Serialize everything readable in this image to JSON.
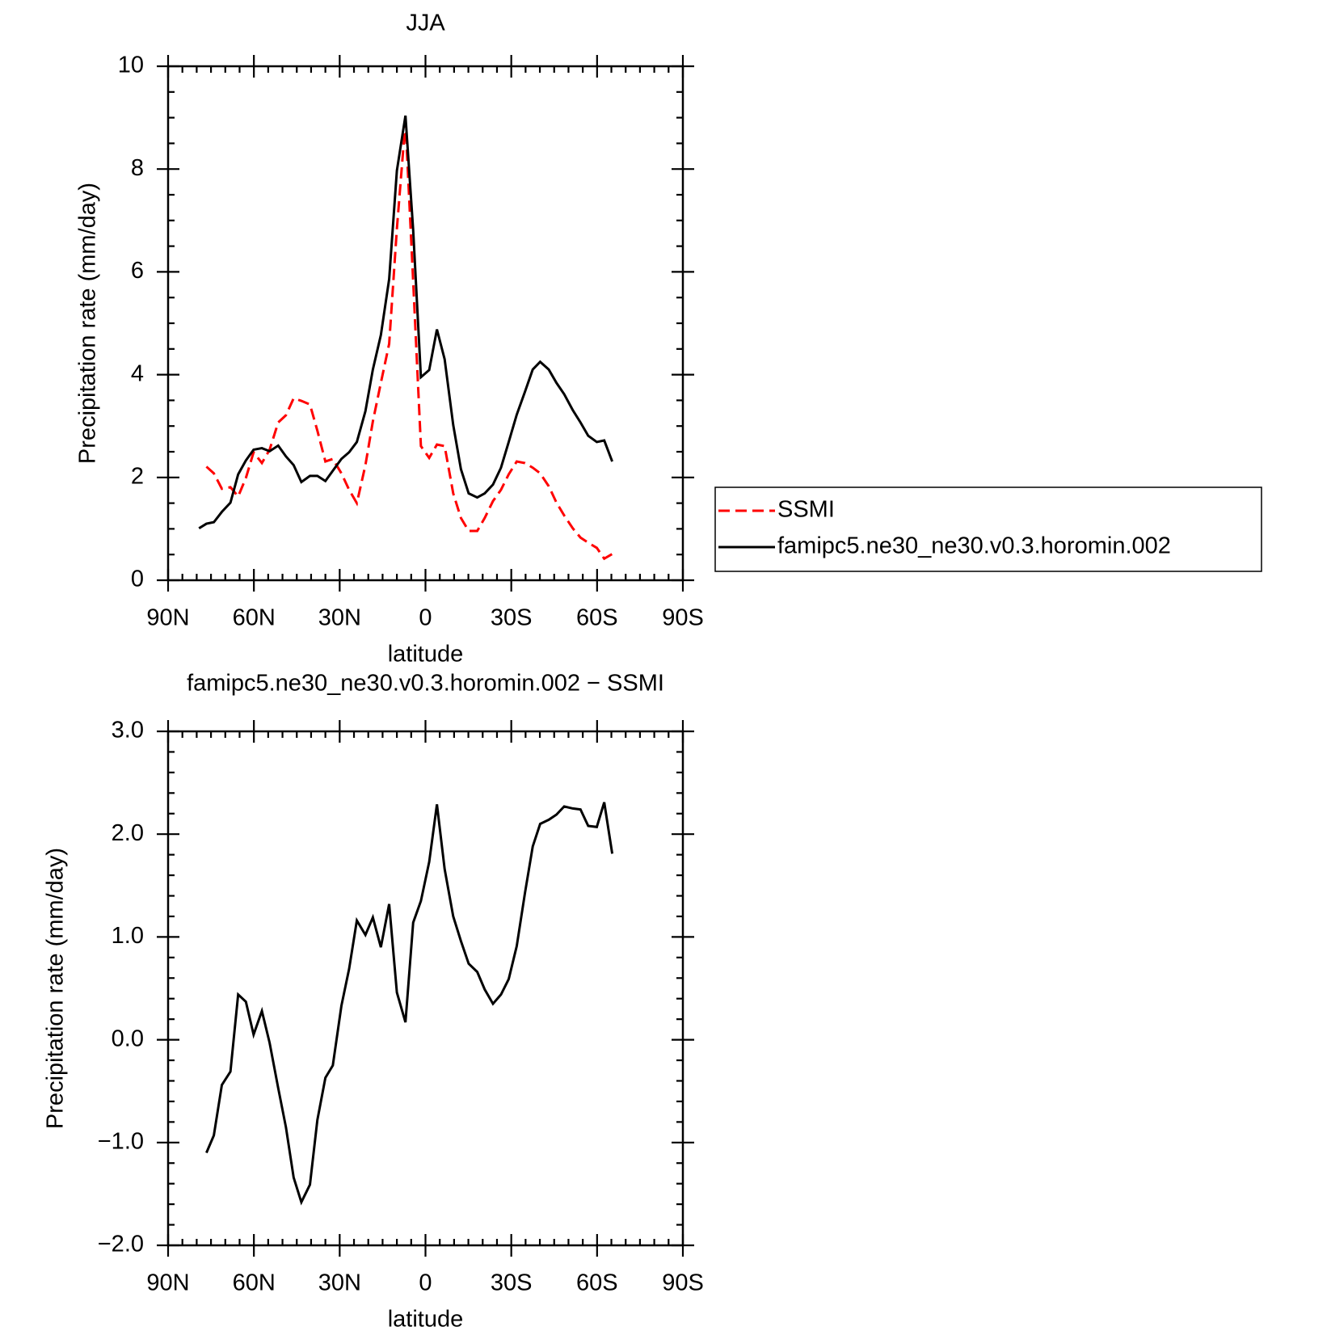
{
  "chart_data": [
    {
      "type": "line",
      "title": "JJA",
      "xlabel": "latitude",
      "ylabel": "Precipitation rate (mm/day)",
      "xlim": [
        90,
        -90
      ],
      "xticks": [
        {
          "value": 90,
          "label": "90N"
        },
        {
          "value": 60,
          "label": "60N"
        },
        {
          "value": 30,
          "label": "30N"
        },
        0,
        {
          "value": -30,
          "label": "30S"
        },
        {
          "value": -60,
          "label": "60S"
        },
        {
          "value": -90,
          "label": "90S"
        }
      ],
      "ylim": [
        0,
        10
      ],
      "yticks": [
        0,
        2,
        4,
        6,
        8,
        10
      ],
      "legend": "right",
      "x": [
        79.2,
        76.6,
        74.0,
        71.2,
        68.2,
        65.5,
        62.8,
        60.1,
        57.2,
        54.5,
        51.5,
        48.8,
        46.1,
        43.4,
        40.4,
        37.8,
        35.0,
        32.4,
        29.4,
        26.7,
        24.0,
        21.0,
        18.4,
        15.6,
        12.7,
        10.0,
        7.0,
        4.3,
        1.6,
        -1.3,
        -4.0,
        -6.7,
        -9.7,
        -12.4,
        -15.1,
        -18.1,
        -20.7,
        -23.6,
        -26.4,
        -29.1,
        -31.9,
        -34.8,
        -37.5,
        -40.1,
        -43.1,
        -45.8,
        -48.5,
        -51.5,
        -54.2,
        -56.9,
        -59.9,
        -62.5,
        -65.3
      ],
      "series": [
        {
          "name": "SSMI",
          "color": "#ff0000",
          "line_style": "dashed",
          "values": [
            null,
            2.21,
            2.08,
            1.78,
            1.81,
            1.63,
            1.99,
            2.49,
            2.28,
            2.54,
            3.07,
            3.21,
            3.54,
            3.49,
            3.42,
            2.91,
            2.31,
            2.36,
            2.08,
            1.76,
            1.5,
            2.24,
            3.09,
            3.84,
            4.6,
            6.84,
            8.92,
            5.81,
            2.61,
            2.38,
            2.64,
            2.61,
            1.69,
            1.21,
            0.96,
            0.96,
            1.21,
            1.54,
            1.76,
            2.06,
            2.31,
            2.28,
            2.19,
            2.08,
            1.83,
            1.51,
            1.26,
            1.01,
            0.83,
            0.73,
            0.63,
            0.42,
            0.51
          ]
        },
        {
          "name": "famipc5.ne30_ne30.v0.3.horomin.002",
          "color": "#000000",
          "line_style": "solid",
          "values": [
            1.01,
            1.1,
            1.13,
            1.33,
            1.51,
            2.06,
            2.33,
            2.54,
            2.57,
            2.51,
            2.62,
            2.41,
            2.24,
            1.91,
            2.03,
            2.03,
            1.93,
            2.13,
            2.36,
            2.49,
            2.69,
            3.29,
            4.1,
            4.77,
            5.86,
            7.97,
            9.04,
            6.81,
            3.95,
            4.09,
            4.88,
            4.3,
            3.02,
            2.16,
            1.69,
            1.61,
            1.69,
            1.86,
            2.19,
            2.69,
            3.22,
            3.67,
            4.1,
            4.25,
            4.1,
            3.84,
            3.62,
            3.31,
            3.07,
            2.81,
            2.69,
            2.72,
            2.31
          ]
        }
      ]
    },
    {
      "type": "line",
      "title": "famipc5.ne30_ne30.v0.3.horomin.002 − SSMI",
      "xlabel": "latitude",
      "ylabel": "Precipitation rate (mm/day)",
      "xlim": [
        90,
        -90
      ],
      "xticks": [
        {
          "value": 90,
          "label": "90N"
        },
        {
          "value": 60,
          "label": "60N"
        },
        {
          "value": 30,
          "label": "30N"
        },
        0,
        {
          "value": -30,
          "label": "30S"
        },
        {
          "value": -60,
          "label": "60S"
        },
        {
          "value": -90,
          "label": "90S"
        }
      ],
      "ylim": [
        -2,
        3
      ],
      "yticks": [
        {
          "value": -2,
          "label": "−2.0"
        },
        {
          "value": -1,
          "label": "−1.0"
        },
        {
          "value": 0,
          "label": "0.0"
        },
        {
          "value": 1,
          "label": "1.0"
        },
        {
          "value": 2,
          "label": "2.0"
        },
        {
          "value": 3,
          "label": "3.0"
        }
      ],
      "x": [
        76.6,
        74.0,
        71.2,
        68.2,
        65.5,
        62.8,
        60.1,
        57.2,
        54.5,
        51.5,
        48.8,
        46.1,
        43.4,
        40.4,
        37.8,
        35.0,
        32.4,
        29.4,
        26.7,
        24.0,
        21.0,
        18.4,
        15.6,
        12.7,
        10.0,
        7.0,
        4.3,
        1.6,
        -1.3,
        -4.0,
        -6.7,
        -9.7,
        -12.4,
        -15.1,
        -18.1,
        -20.7,
        -23.6,
        -26.4,
        -29.1,
        -31.9,
        -34.8,
        -37.5,
        -40.1,
        -43.1,
        -45.8,
        -48.5,
        -51.5,
        -54.2,
        -56.9,
        -59.9,
        -62.5,
        -65.3
      ],
      "series": [
        {
          "color": "#000000",
          "line_style": "solid",
          "values": [
            -1.1,
            -0.93,
            -0.44,
            -0.31,
            0.44,
            0.37,
            0.05,
            0.28,
            -0.03,
            -0.47,
            -0.85,
            -1.34,
            -1.58,
            -1.41,
            -0.78,
            -0.37,
            -0.25,
            0.33,
            0.69,
            1.16,
            1.02,
            1.19,
            0.9,
            1.32,
            0.46,
            0.17,
            1.14,
            1.35,
            1.73,
            2.29,
            1.66,
            1.2,
            0.96,
            0.74,
            0.66,
            0.49,
            0.35,
            0.44,
            0.59,
            0.91,
            1.43,
            1.88,
            2.1,
            2.14,
            2.19,
            2.27,
            2.25,
            2.24,
            2.08,
            2.07,
            2.31,
            1.81
          ]
        }
      ]
    }
  ]
}
